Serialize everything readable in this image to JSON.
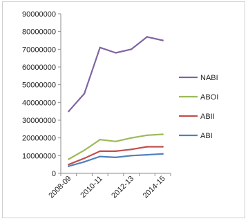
{
  "chart_data": {
    "type": "line",
    "title": "",
    "xlabel": "",
    "ylabel": "",
    "categories": [
      "2008-09",
      "2009-10",
      "2010-11",
      "2011-12",
      "2012-13",
      "2013-14",
      "2014-15"
    ],
    "x_tick_labels": [
      "2008-09",
      "2010-11",
      "2012-13",
      "2014-15"
    ],
    "y_ticks": [
      "0",
      "10000000",
      "20000000",
      "30000000",
      "40000000",
      "50000000",
      "60000000",
      "70000000",
      "80000000",
      "90000000"
    ],
    "ylim": [
      0,
      90000000
    ],
    "grid": false,
    "legend_position": "right",
    "series": [
      {
        "name": "NABI",
        "color": "#8064a2",
        "values": [
          35000000,
          45000000,
          71000000,
          68000000,
          70000000,
          77000000,
          75000000
        ]
      },
      {
        "name": "ABOI",
        "color": "#9bbb59",
        "values": [
          8000000,
          13000000,
          19000000,
          18000000,
          20000000,
          21500000,
          22000000
        ]
      },
      {
        "name": "ABII",
        "color": "#c0504d",
        "values": [
          5000000,
          8500000,
          12500000,
          12500000,
          13500000,
          15000000,
          15000000
        ]
      },
      {
        "name": "ABI",
        "color": "#4f81bd",
        "values": [
          4000000,
          6500000,
          9500000,
          9000000,
          10000000,
          10500000,
          11000000
        ]
      }
    ]
  }
}
